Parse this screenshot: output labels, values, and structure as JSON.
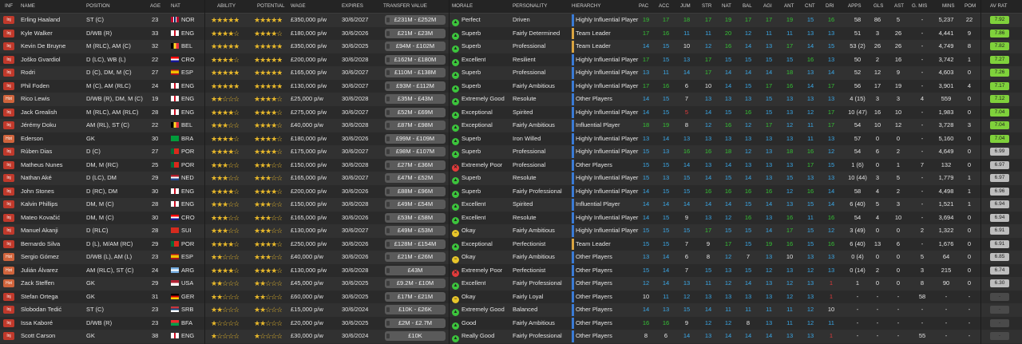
{
  "headers": {
    "inf": "INF",
    "name": "NAME",
    "position": "POSITION",
    "age": "AGE",
    "nat": "NAT",
    "ability": "ABILITY",
    "potential": "POTENTIAL",
    "wage": "WAGE",
    "expires": "EXPIRES",
    "transfer_value": "TRANSFER VALUE",
    "morale": "MORALE",
    "personality": "PERSONALITY",
    "hierarchy": "HIERARCHY",
    "pac": "PAC",
    "acc": "ACC",
    "jum": "JUM",
    "str": "STR",
    "nat_attr": "NAT",
    "bal": "BAL",
    "agi": "AGI",
    "ant": "ANT",
    "cnt": "CNT",
    "dri": "DRI",
    "apps": "APPS",
    "gls": "GLS",
    "ast": "AST",
    "gmis": "G. MIS",
    "mins": "MINS",
    "pom": "POM",
    "avrat": "AV RAT"
  },
  "colors": {
    "green": "#35c235",
    "blue": "#3aa8e8",
    "white": "#e8e8e8",
    "red": "#e23b3b",
    "accent_bar": "#3a7bd5",
    "leader_bar": "#d9a441"
  },
  "rows": [
    {
      "inf": "Inj",
      "name": "Erling Haaland",
      "position": "ST (C)",
      "age": "23",
      "nat": "NOR",
      "ability": 5,
      "potential": 5,
      "wage": "£350,000 p/w",
      "expires": "30/6/2027",
      "tv": "£231M - £252M",
      "morale": "Perfect",
      "mood": "good",
      "personality": "Driven",
      "hierarchy": "Highly Influential Player",
      "pac": "19",
      "acc": "17",
      "jum": "18",
      "str": "17",
      "nat_attr": "19",
      "bal": "17",
      "agi": "17",
      "ant": "19",
      "cnt": "15",
      "dri": "16",
      "apps": "58",
      "gls": "86",
      "ast": "5",
      "gmis": "-",
      "mins": "5,237",
      "pom": "22",
      "avrat": "7.92"
    },
    {
      "inf": "Inj",
      "name": "Kyle Walker",
      "position": "D/WB (R)",
      "age": "33",
      "nat": "ENG",
      "ability": 4,
      "potential": 4,
      "wage": "£180,000 p/w",
      "expires": "30/6/2026",
      "tv": "£21M - £23M",
      "morale": "Superb",
      "mood": "good",
      "personality": "Fairly Determined",
      "hierarchy": "Team Leader",
      "pac": "17",
      "acc": "16",
      "jum": "11",
      "str": "11",
      "nat_attr": "20",
      "bal": "12",
      "ant": "11",
      "agi": "11",
      "cnt": "13",
      "dri": "13",
      "apps": "51",
      "gls": "3",
      "ast": "26",
      "gmis": "-",
      "mins": "4,441",
      "pom": "9",
      "avrat": "7.86"
    },
    {
      "inf": "Inj",
      "name": "Kevin De Bruyne",
      "position": "M (RLC), AM (C)",
      "age": "32",
      "nat": "BEL",
      "ability": 5,
      "potential": 5,
      "wage": "£350,000 p/w",
      "expires": "30/6/2025",
      "tv": "£94M - £102M",
      "morale": "Superb",
      "mood": "good",
      "personality": "Professional",
      "hierarchy": "Team Leader",
      "pac": "14",
      "acc": "15",
      "jum": "10",
      "str": "12",
      "nat_attr": "16",
      "bal": "14",
      "agi": "13",
      "ant": "17",
      "cnt": "14",
      "dri": "15",
      "apps": "53 (2)",
      "gls": "26",
      "ast": "26",
      "gmis": "-",
      "mins": "4,749",
      "pom": "8",
      "avrat": "7.82"
    },
    {
      "inf": "Inj",
      "name": "Joško Gvardiol",
      "position": "D (LC), WB (L)",
      "age": "22",
      "nat": "CRO",
      "ability": 4,
      "potential": 5,
      "wage": "£200,000 p/w",
      "expires": "30/6/2028",
      "tv": "£162M - £180M",
      "morale": "Excellent",
      "mood": "good",
      "personality": "Resilient",
      "hierarchy": "Highly Influential Player",
      "pac": "17",
      "acc": "15",
      "jum": "13",
      "str": "17",
      "nat_attr": "15",
      "bal": "15",
      "agi": "15",
      "ant": "15",
      "cnt": "16",
      "dri": "13",
      "apps": "50",
      "gls": "2",
      "ast": "16",
      "gmis": "-",
      "mins": "3,742",
      "pom": "1",
      "avrat": "7.27"
    },
    {
      "inf": "Inj",
      "name": "Rodri",
      "position": "D (C), DM, M (C)",
      "age": "27",
      "nat": "ESP",
      "ability": 5,
      "potential": 5,
      "wage": "£165,000 p/w",
      "expires": "30/6/2027",
      "tv": "£110M - £138M",
      "morale": "Superb",
      "mood": "good",
      "personality": "Professional",
      "hierarchy": "Highly Influential Player",
      "pac": "13",
      "acc": "11",
      "jum": "14",
      "str": "17",
      "nat_attr": "14",
      "bal": "14",
      "agi": "14",
      "ant": "18",
      "cnt": "13",
      "dri": "14",
      "apps": "52",
      "gls": "12",
      "ast": "9",
      "gmis": "-",
      "mins": "4,603",
      "pom": "0",
      "avrat": "7.26"
    },
    {
      "inf": "Inj",
      "name": "Phil Foden",
      "position": "M (C), AM (RLC)",
      "age": "24",
      "nat": "ENG",
      "ability": 5,
      "potential": 5,
      "wage": "£130,000 p/w",
      "expires": "30/6/2027",
      "tv": "£93M - £112M",
      "morale": "Superb",
      "mood": "good",
      "personality": "Fairly Ambitious",
      "hierarchy": "Highly Influential Player",
      "pac": "17",
      "acc": "16",
      "jum": "6",
      "str": "10",
      "nat_attr": "14",
      "bal": "15",
      "agi": "17",
      "ant": "16",
      "cnt": "14",
      "dri": "17",
      "apps": "56",
      "gls": "17",
      "ast": "19",
      "gmis": "-",
      "mins": "3,901",
      "pom": "4",
      "avrat": "7.17"
    },
    {
      "inf": "Hot",
      "name": "Rico Lewis",
      "position": "D/WB (R), DM, M (C)",
      "age": "19",
      "nat": "ENG",
      "ability": 2,
      "potential": 4,
      "wage": "£25,000 p/w",
      "expires": "30/6/2028",
      "tv": "£35M - £43M",
      "morale": "Extremely Good",
      "mood": "good",
      "personality": "Resolute",
      "hierarchy": "Other Players",
      "pac": "14",
      "acc": "15",
      "jum": "7",
      "str": "13",
      "nat_attr": "13",
      "bal": "13",
      "agi": "15",
      "ant": "13",
      "cnt": "13",
      "dri": "13",
      "apps": "4 (15)",
      "gls": "3",
      "ast": "3",
      "gmis": "4",
      "mins": "559",
      "pom": "0",
      "avrat": "7.12"
    },
    {
      "inf": "Inj",
      "name": "Jack Grealish",
      "position": "M (RLC), AM (RLC)",
      "age": "28",
      "nat": "ENG",
      "ability": 4,
      "potential": 4,
      "wage": "£275,000 p/w",
      "expires": "30/6/2027",
      "tv": "£52M - £69M",
      "morale": "Exceptional",
      "mood": "good",
      "personality": "Spirited",
      "hierarchy": "Highly Influential Player",
      "pac": "14",
      "acc": "15",
      "jum": "5",
      "str": "14",
      "nat_attr": "15",
      "bal": "16",
      "agi": "15",
      "ant": "13",
      "cnt": "12",
      "dri": "17",
      "apps": "10 (47)",
      "gls": "16",
      "ast": "10",
      "gmis": "-",
      "mins": "1,983",
      "pom": "0",
      "avrat": "7.04"
    },
    {
      "inf": "Inj",
      "name": "Jérémy Doku",
      "position": "AM (RL), ST (C)",
      "age": "22",
      "nat": "BEL",
      "ability": 3,
      "potential": 4,
      "wage": "£40,000 p/w",
      "expires": "30/6/2028",
      "tv": "£87M - £98M",
      "morale": "Exceptional",
      "mood": "good",
      "personality": "Fairly Ambitious",
      "hierarchy": "Influential Player",
      "pac": "18",
      "acc": "19",
      "jum": "8",
      "str": "12",
      "nat_attr": "16",
      "bal": "12",
      "agi": "17",
      "ant": "12",
      "cnt": "11",
      "dri": "17",
      "apps": "54",
      "gls": "10",
      "ast": "12",
      "gmis": "-",
      "mins": "3,728",
      "pom": "3",
      "avrat": "7.04"
    },
    {
      "inf": "Hot",
      "name": "Ederson",
      "position": "GK",
      "age": "30",
      "nat": "BRA",
      "ability": 4,
      "potential": 4,
      "wage": "£180,000 p/w",
      "expires": "30/6/2026",
      "tv": "£99M - £109M",
      "morale": "Superb",
      "mood": "good",
      "personality": "Iron Willed",
      "hierarchy": "Highly Influential Player",
      "pac": "13",
      "acc": "14",
      "jum": "13",
      "str": "13",
      "nat_attr": "13",
      "bal": "13",
      "agi": "13",
      "ant": "13",
      "cnt": "11",
      "dri": "13",
      "apps": "57",
      "gls": "0",
      "ast": "0",
      "gmis": "-",
      "mins": "5,160",
      "pom": "0",
      "avrat": "7.04"
    },
    {
      "inf": "Inj",
      "name": "Rúben Dias",
      "position": "D (C)",
      "age": "27",
      "nat": "POR",
      "ability": 4,
      "potential": 4,
      "wage": "£175,000 p/w",
      "expires": "30/6/2027",
      "tv": "£98M - £107M",
      "morale": "Superb",
      "mood": "good",
      "personality": "Professional",
      "hierarchy": "Highly Influential Player",
      "pac": "15",
      "acc": "13",
      "jum": "16",
      "str": "16",
      "nat_attr": "18",
      "bal": "12",
      "agi": "13",
      "ant": "18",
      "cnt": "16",
      "dri": "12",
      "apps": "54",
      "gls": "6",
      "ast": "2",
      "gmis": "-",
      "mins": "4,649",
      "pom": "0",
      "avrat": "6.99"
    },
    {
      "inf": "Inj",
      "name": "Matheus Nunes",
      "position": "DM, M (RC)",
      "age": "25",
      "nat": "POR",
      "ability": 3,
      "potential": 3,
      "wage": "£150,000 p/w",
      "expires": "30/6/2028",
      "tv": "£27M - £36M",
      "morale": "Extremely Poor",
      "mood": "bad",
      "personality": "Professional",
      "hierarchy": "Other Players",
      "pac": "15",
      "acc": "15",
      "jum": "14",
      "str": "13",
      "nat_attr": "14",
      "bal": "13",
      "agi": "13",
      "ant": "13",
      "cnt": "17",
      "dri": "15",
      "apps": "1 (6)",
      "gls": "0",
      "ast": "1",
      "gmis": "7",
      "mins": "132",
      "pom": "0",
      "avrat": "6.97"
    },
    {
      "inf": "Inj",
      "name": "Nathan Aké",
      "position": "D (LC), DM",
      "age": "29",
      "nat": "NED",
      "ability": 3,
      "potential": 3,
      "wage": "£165,000 p/w",
      "expires": "30/6/2027",
      "tv": "£47M - £52M",
      "morale": "Superb",
      "mood": "good",
      "personality": "Resolute",
      "hierarchy": "Highly Influential Player",
      "pac": "15",
      "acc": "13",
      "jum": "15",
      "str": "14",
      "nat_attr": "15",
      "bal": "14",
      "agi": "13",
      "ant": "15",
      "cnt": "13",
      "dri": "13",
      "apps": "10 (44)",
      "gls": "3",
      "ast": "5",
      "gmis": "-",
      "mins": "1,779",
      "pom": "1",
      "avrat": "6.97"
    },
    {
      "inf": "Inj",
      "name": "John Stones",
      "position": "D (RC), DM",
      "age": "30",
      "nat": "ENG",
      "ability": 4,
      "potential": 4,
      "wage": "£200,000 p/w",
      "expires": "30/6/2026",
      "tv": "£88M - £96M",
      "morale": "Superb",
      "mood": "good",
      "personality": "Fairly Professional",
      "hierarchy": "Highly Influential Player",
      "pac": "14",
      "acc": "15",
      "jum": "15",
      "str": "16",
      "nat_attr": "16",
      "bal": "16",
      "agi": "16",
      "ant": "12",
      "cnt": "16",
      "dri": "14",
      "apps": "58",
      "gls": "4",
      "ast": "2",
      "gmis": "-",
      "mins": "4,498",
      "pom": "1",
      "avrat": "6.96"
    },
    {
      "inf": "Inj",
      "name": "Kalvin Phillips",
      "position": "DM, M (C)",
      "age": "28",
      "nat": "ENG",
      "ability": 3,
      "potential": 3,
      "wage": "£150,000 p/w",
      "expires": "30/6/2028",
      "tv": "£49M - £54M",
      "morale": "Excellent",
      "mood": "good",
      "personality": "Spirited",
      "hierarchy": "Influential Player",
      "pac": "14",
      "acc": "14",
      "jum": "14",
      "str": "14",
      "nat_attr": "14",
      "bal": "15",
      "agi": "14",
      "ant": "13",
      "cnt": "15",
      "dri": "14",
      "apps": "6 (40)",
      "gls": "5",
      "ast": "3",
      "gmis": "-",
      "mins": "1,521",
      "pom": "1",
      "avrat": "6.94"
    },
    {
      "inf": "Inj",
      "name": "Mateo Kovačić",
      "position": "DM, M (C)",
      "age": "30",
      "nat": "CRO",
      "ability": 3,
      "potential": 3,
      "wage": "£165,000 p/w",
      "expires": "30/6/2026",
      "tv": "£53M - £58M",
      "morale": "Excellent",
      "mood": "good",
      "personality": "Resolute",
      "hierarchy": "Highly Influential Player",
      "pac": "14",
      "acc": "15",
      "jum": "9",
      "str": "13",
      "nat_attr": "12",
      "bal": "16",
      "agi": "13",
      "ant": "16",
      "cnt": "11",
      "dri": "16",
      "apps": "54",
      "gls": "4",
      "ast": "10",
      "gmis": "-",
      "mins": "3,694",
      "pom": "0",
      "avrat": "6.94"
    },
    {
      "inf": "Inj",
      "name": "Manuel Akanji",
      "position": "D (RLC)",
      "age": "28",
      "nat": "SUI",
      "ability": 3,
      "potential": 3,
      "wage": "£130,000 p/w",
      "expires": "30/6/2027",
      "tv": "£49M - £53M",
      "morale": "Okay",
      "mood": "ok",
      "personality": "Fairly Ambitious",
      "hierarchy": "Highly Influential Player",
      "pac": "15",
      "acc": "15",
      "jum": "15",
      "str": "17",
      "nat_attr": "15",
      "bal": "15",
      "agi": "14",
      "ant": "17",
      "cnt": "15",
      "dri": "12",
      "apps": "3 (49)",
      "gls": "0",
      "ast": "0",
      "gmis": "2",
      "mins": "1,322",
      "pom": "0",
      "avrat": "6.91"
    },
    {
      "inf": "Inj",
      "name": "Bernardo Silva",
      "position": "D (L), M/AM (RC)",
      "age": "29",
      "nat": "POR",
      "ability": 4,
      "potential": 4,
      "wage": "£250,000 p/w",
      "expires": "30/6/2026",
      "tv": "£128M - £154M",
      "morale": "Exceptional",
      "mood": "good",
      "personality": "Perfectionist",
      "hierarchy": "Team Leader",
      "pac": "15",
      "acc": "15",
      "jum": "7",
      "str": "9",
      "nat_attr": "17",
      "bal": "15",
      "agi": "19",
      "ant": "16",
      "cnt": "15",
      "dri": "16",
      "apps": "6 (40)",
      "gls": "13",
      "ast": "6",
      "gmis": "-",
      "mins": "1,676",
      "pom": "0",
      "avrat": "6.91"
    },
    {
      "inf": "Hot",
      "name": "Sergio Gómez",
      "position": "D/WB (L), AM (L)",
      "age": "23",
      "nat": "ESP",
      "ability": 2,
      "potential": 3,
      "wage": "£40,000 p/w",
      "expires": "30/6/2026",
      "tv": "£21M - £26M",
      "morale": "Okay",
      "mood": "ok",
      "personality": "Fairly Ambitious",
      "hierarchy": "Other Players",
      "pac": "13",
      "acc": "14",
      "jum": "6",
      "str": "8",
      "nat_attr": "12",
      "bal": "7",
      "agi": "13",
      "ant": "10",
      "cnt": "13",
      "dri": "13",
      "apps": "0 (4)",
      "gls": "0",
      "ast": "0",
      "gmis": "5",
      "mins": "64",
      "pom": "0",
      "avrat": "6.85"
    },
    {
      "inf": "Hot",
      "name": "Julián Álvarez",
      "position": "AM (RLC), ST (C)",
      "age": "24",
      "nat": "ARG",
      "ability": 4,
      "potential": 4,
      "wage": "£130,000 p/w",
      "expires": "30/6/2028",
      "tv": "£43M",
      "morale": "Extremely Poor",
      "mood": "bad",
      "personality": "Perfectionist",
      "hierarchy": "Other Players",
      "pac": "15",
      "acc": "14",
      "jum": "7",
      "str": "15",
      "nat_attr": "13",
      "bal": "15",
      "agi": "12",
      "ant": "13",
      "cnt": "12",
      "dri": "13",
      "apps": "0 (14)",
      "gls": "2",
      "ast": "0",
      "gmis": "3",
      "mins": "215",
      "pom": "0",
      "avrat": "6.74"
    },
    {
      "inf": "Hot",
      "name": "Zack Steffen",
      "position": "GK",
      "age": "29",
      "nat": "USA",
      "ability": 2,
      "potential": 2,
      "wage": "£45,000 p/w",
      "expires": "30/6/2025",
      "tv": "£9.2M - £10M",
      "morale": "Excellent",
      "mood": "good",
      "personality": "Fairly Professional",
      "hierarchy": "Other Players",
      "pac": "12",
      "acc": "14",
      "jum": "13",
      "str": "11",
      "nat_attr": "12",
      "bal": "14",
      "agi": "13",
      "ant": "12",
      "cnt": "13",
      "dri": "1",
      "apps": "1",
      "gls": "0",
      "ast": "0",
      "gmis": "8",
      "mins": "90",
      "pom": "0",
      "avrat": "6.30"
    },
    {
      "inf": "Inj",
      "name": "Stefan Ortega",
      "position": "GK",
      "age": "31",
      "nat": "GER",
      "ability": 2,
      "potential": 2,
      "wage": "£60,000 p/w",
      "expires": "30/6/2025",
      "tv": "£17M - £21M",
      "morale": "Okay",
      "mood": "ok",
      "personality": "Fairly Loyal",
      "hierarchy": "Other Players",
      "pac": "10",
      "acc": "11",
      "jum": "12",
      "str": "13",
      "nat_attr": "13",
      "bal": "13",
      "agi": "13",
      "ant": "12",
      "cnt": "13",
      "dri": "1",
      "apps": "-",
      "gls": "-",
      "ast": "-",
      "gmis": "58",
      "mins": "-",
      "pom": "-",
      "avrat": "-"
    },
    {
      "inf": "Inj",
      "name": "Slobodan Tedić",
      "position": "ST (C)",
      "age": "23",
      "nat": "SRB",
      "ability": 2,
      "potential": 2,
      "wage": "£15,000 p/w",
      "expires": "30/6/2024",
      "tv": "£10K - £26K",
      "morale": "Extremely Good",
      "mood": "good",
      "personality": "Balanced",
      "hierarchy": "Other Players",
      "pac": "14",
      "acc": "13",
      "jum": "15",
      "str": "14",
      "nat_attr": "11",
      "bal": "11",
      "agi": "11",
      "ant": "11",
      "cnt": "12",
      "dri": "10",
      "apps": "-",
      "gls": "-",
      "ast": "-",
      "gmis": "-",
      "mins": "-",
      "pom": "-",
      "avrat": "-"
    },
    {
      "inf": "Inj",
      "name": "Issa Kaboré",
      "position": "D/WB (R)",
      "age": "23",
      "nat": "BFA",
      "ability": 1,
      "potential": 2,
      "wage": "£20,000 p/w",
      "expires": "30/6/2025",
      "tv": "£2M - £2.7M",
      "morale": "Good",
      "mood": "good",
      "personality": "Fairly Ambitious",
      "hierarchy": "Other Players",
      "pac": "16",
      "acc": "16",
      "jum": "9",
      "str": "12",
      "nat_attr": "12",
      "bal": "8",
      "agi": "13",
      "ant": "11",
      "cnt": "12",
      "dri": "11",
      "apps": "-",
      "gls": "-",
      "ast": "-",
      "gmis": "-",
      "mins": "-",
      "pom": "-",
      "avrat": "-"
    },
    {
      "inf": "Inj",
      "name": "Scott Carson",
      "position": "GK",
      "age": "38",
      "nat": "ENG",
      "ability": 1,
      "potential": 1,
      "wage": "£30,000 p/w",
      "expires": "30/6/2024",
      "tv": "£10K",
      "morale": "Really Good",
      "mood": "good",
      "personality": "Fairly Professional",
      "hierarchy": "Other Players",
      "pac": "8",
      "acc": "6",
      "jum": "14",
      "str": "13",
      "nat_attr": "14",
      "bal": "14",
      "agi": "14",
      "ant": "13",
      "cnt": "13",
      "dri": "1",
      "apps": "-",
      "gls": "-",
      "ast": "-",
      "gmis": "55",
      "mins": "-",
      "pom": "-",
      "avrat": "-"
    }
  ]
}
